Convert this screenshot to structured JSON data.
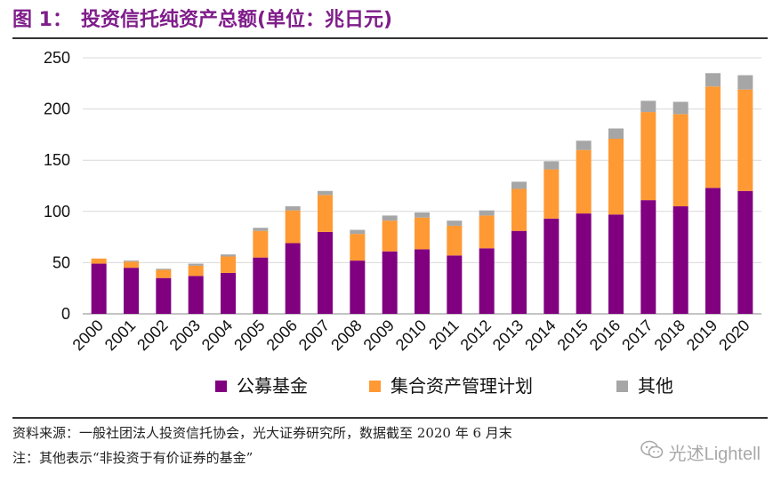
{
  "header": {
    "figure_label": "图 1：",
    "title": "投资信托纯资产总额(单位：兆日元)"
  },
  "chart_data": {
    "type": "bar",
    "stacked": true,
    "title": "投资信托纯资产总额(单位：兆日元)",
    "categories": [
      "2000",
      "2001",
      "2002",
      "2003",
      "2004",
      "2005",
      "2006",
      "2007",
      "2008",
      "2009",
      "2010",
      "2011",
      "2012",
      "2013",
      "2014",
      "2015",
      "2016",
      "2017",
      "2018",
      "2019",
      "2020"
    ],
    "series": [
      {
        "name": "公募基金",
        "color": "#800080",
        "values": [
          49,
          45,
          35,
          37,
          40,
          55,
          69,
          80,
          52,
          61,
          63,
          57,
          64,
          81,
          93,
          98,
          97,
          111,
          105,
          123,
          120
        ]
      },
      {
        "name": "集合资产管理计划",
        "color": "#ff9933",
        "values": [
          5,
          6,
          8,
          10,
          16,
          26,
          32,
          36,
          26,
          30,
          31,
          29,
          32,
          41,
          48,
          62,
          74,
          86,
          90,
          99,
          99
        ]
      },
      {
        "name": "其他",
        "color": "#a6a6a6",
        "values": [
          0,
          1,
          1,
          2,
          2,
          3,
          4,
          4,
          4,
          5,
          5,
          5,
          5,
          7,
          8,
          9,
          10,
          11,
          12,
          13,
          14
        ]
      }
    ],
    "ylim": [
      0,
      250
    ],
    "yticks": [
      0,
      50,
      100,
      150,
      200,
      250
    ],
    "grid": true,
    "legend_position": "bottom",
    "xlabel": "",
    "ylabel": ""
  },
  "footer": {
    "source": "资料来源：一般社团法人投资信托协会，光大证券研究所，数据截至 2020 年 6 月末",
    "note": "注：其他表示“非投资于有价证券的基金”",
    "watermark": "光述Lightell"
  }
}
